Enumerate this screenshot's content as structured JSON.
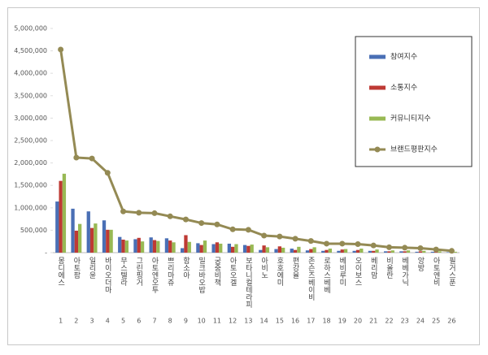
{
  "chart_data": {
    "type": "bar",
    "categories": [
      "몽디에스",
      "아토팜",
      "일리윤",
      "바이오더마",
      "무스텔라",
      "그린핑거",
      "아토엔오투",
      "쁘리마쥬",
      "함소아",
      "밀크바오밥",
      "궁중비책",
      "아토오겔",
      "보타니컬테라피",
      "아비노",
      "호호에미",
      "편강율",
      "존슨즈베이비",
      "로하스베베",
      "베비루미",
      "오이보스",
      "베리맘",
      "비올란",
      "베베가닉",
      "앙방",
      "아토엔비",
      "필거스푼"
    ],
    "ranks": [
      1,
      2,
      3,
      4,
      5,
      6,
      7,
      8,
      9,
      10,
      11,
      12,
      13,
      14,
      15,
      16,
      17,
      18,
      19,
      20,
      21,
      22,
      23,
      24,
      25,
      26
    ],
    "series": [
      {
        "name": "참여지수",
        "type": "bar",
        "color": "#4a6fb5",
        "values": [
          1140000,
          980000,
          920000,
          720000,
          350000,
          300000,
          340000,
          320000,
          100000,
          210000,
          190000,
          200000,
          170000,
          60000,
          80000,
          90000,
          50000,
          40000,
          40000,
          40000,
          40000,
          30000,
          30000,
          20000,
          20000,
          10000
        ]
      },
      {
        "name": "소통지수",
        "type": "bar",
        "color": "#be3a34",
        "values": [
          1600000,
          490000,
          550000,
          510000,
          290000,
          330000,
          280000,
          270000,
          390000,
          170000,
          230000,
          130000,
          150000,
          160000,
          140000,
          60000,
          80000,
          60000,
          70000,
          60000,
          40000,
          30000,
          30000,
          30000,
          20000,
          10000
        ]
      },
      {
        "name": "커뮤니티지수",
        "type": "bar",
        "color": "#98b954",
        "values": [
          1760000,
          640000,
          650000,
          510000,
          270000,
          250000,
          260000,
          230000,
          240000,
          270000,
          200000,
          190000,
          180000,
          120000,
          110000,
          130000,
          120000,
          90000,
          80000,
          90000,
          70000,
          50000,
          50000,
          40000,
          30000,
          20000
        ]
      },
      {
        "name": "브랜드평판지수",
        "type": "line",
        "color": "#948a54",
        "values": [
          4530000,
          2120000,
          2100000,
          1780000,
          920000,
          890000,
          880000,
          810000,
          740000,
          660000,
          630000,
          520000,
          510000,
          380000,
          360000,
          310000,
          260000,
          200000,
          200000,
          190000,
          160000,
          120000,
          110000,
          100000,
          70000,
          40000
        ]
      }
    ],
    "ylim": [
      0,
      5000000
    ],
    "yticks": [
      {
        "value": 0,
        "label": "-"
      },
      {
        "value": 500000,
        "label": "500,000"
      },
      {
        "value": 1000000,
        "label": "1,000,000"
      },
      {
        "value": 1500000,
        "label": "1,500,000"
      },
      {
        "value": 2000000,
        "label": "2,000,000"
      },
      {
        "value": 2500000,
        "label": "2,500,000"
      },
      {
        "value": 3000000,
        "label": "3,000,000"
      },
      {
        "value": 3500000,
        "label": "3,500,000"
      },
      {
        "value": 4000000,
        "label": "4,000,000"
      },
      {
        "value": 4500000,
        "label": "4,500,000"
      },
      {
        "value": 5000000,
        "label": "5,000,000"
      }
    ],
    "grid": false,
    "legend": "top-right"
  }
}
